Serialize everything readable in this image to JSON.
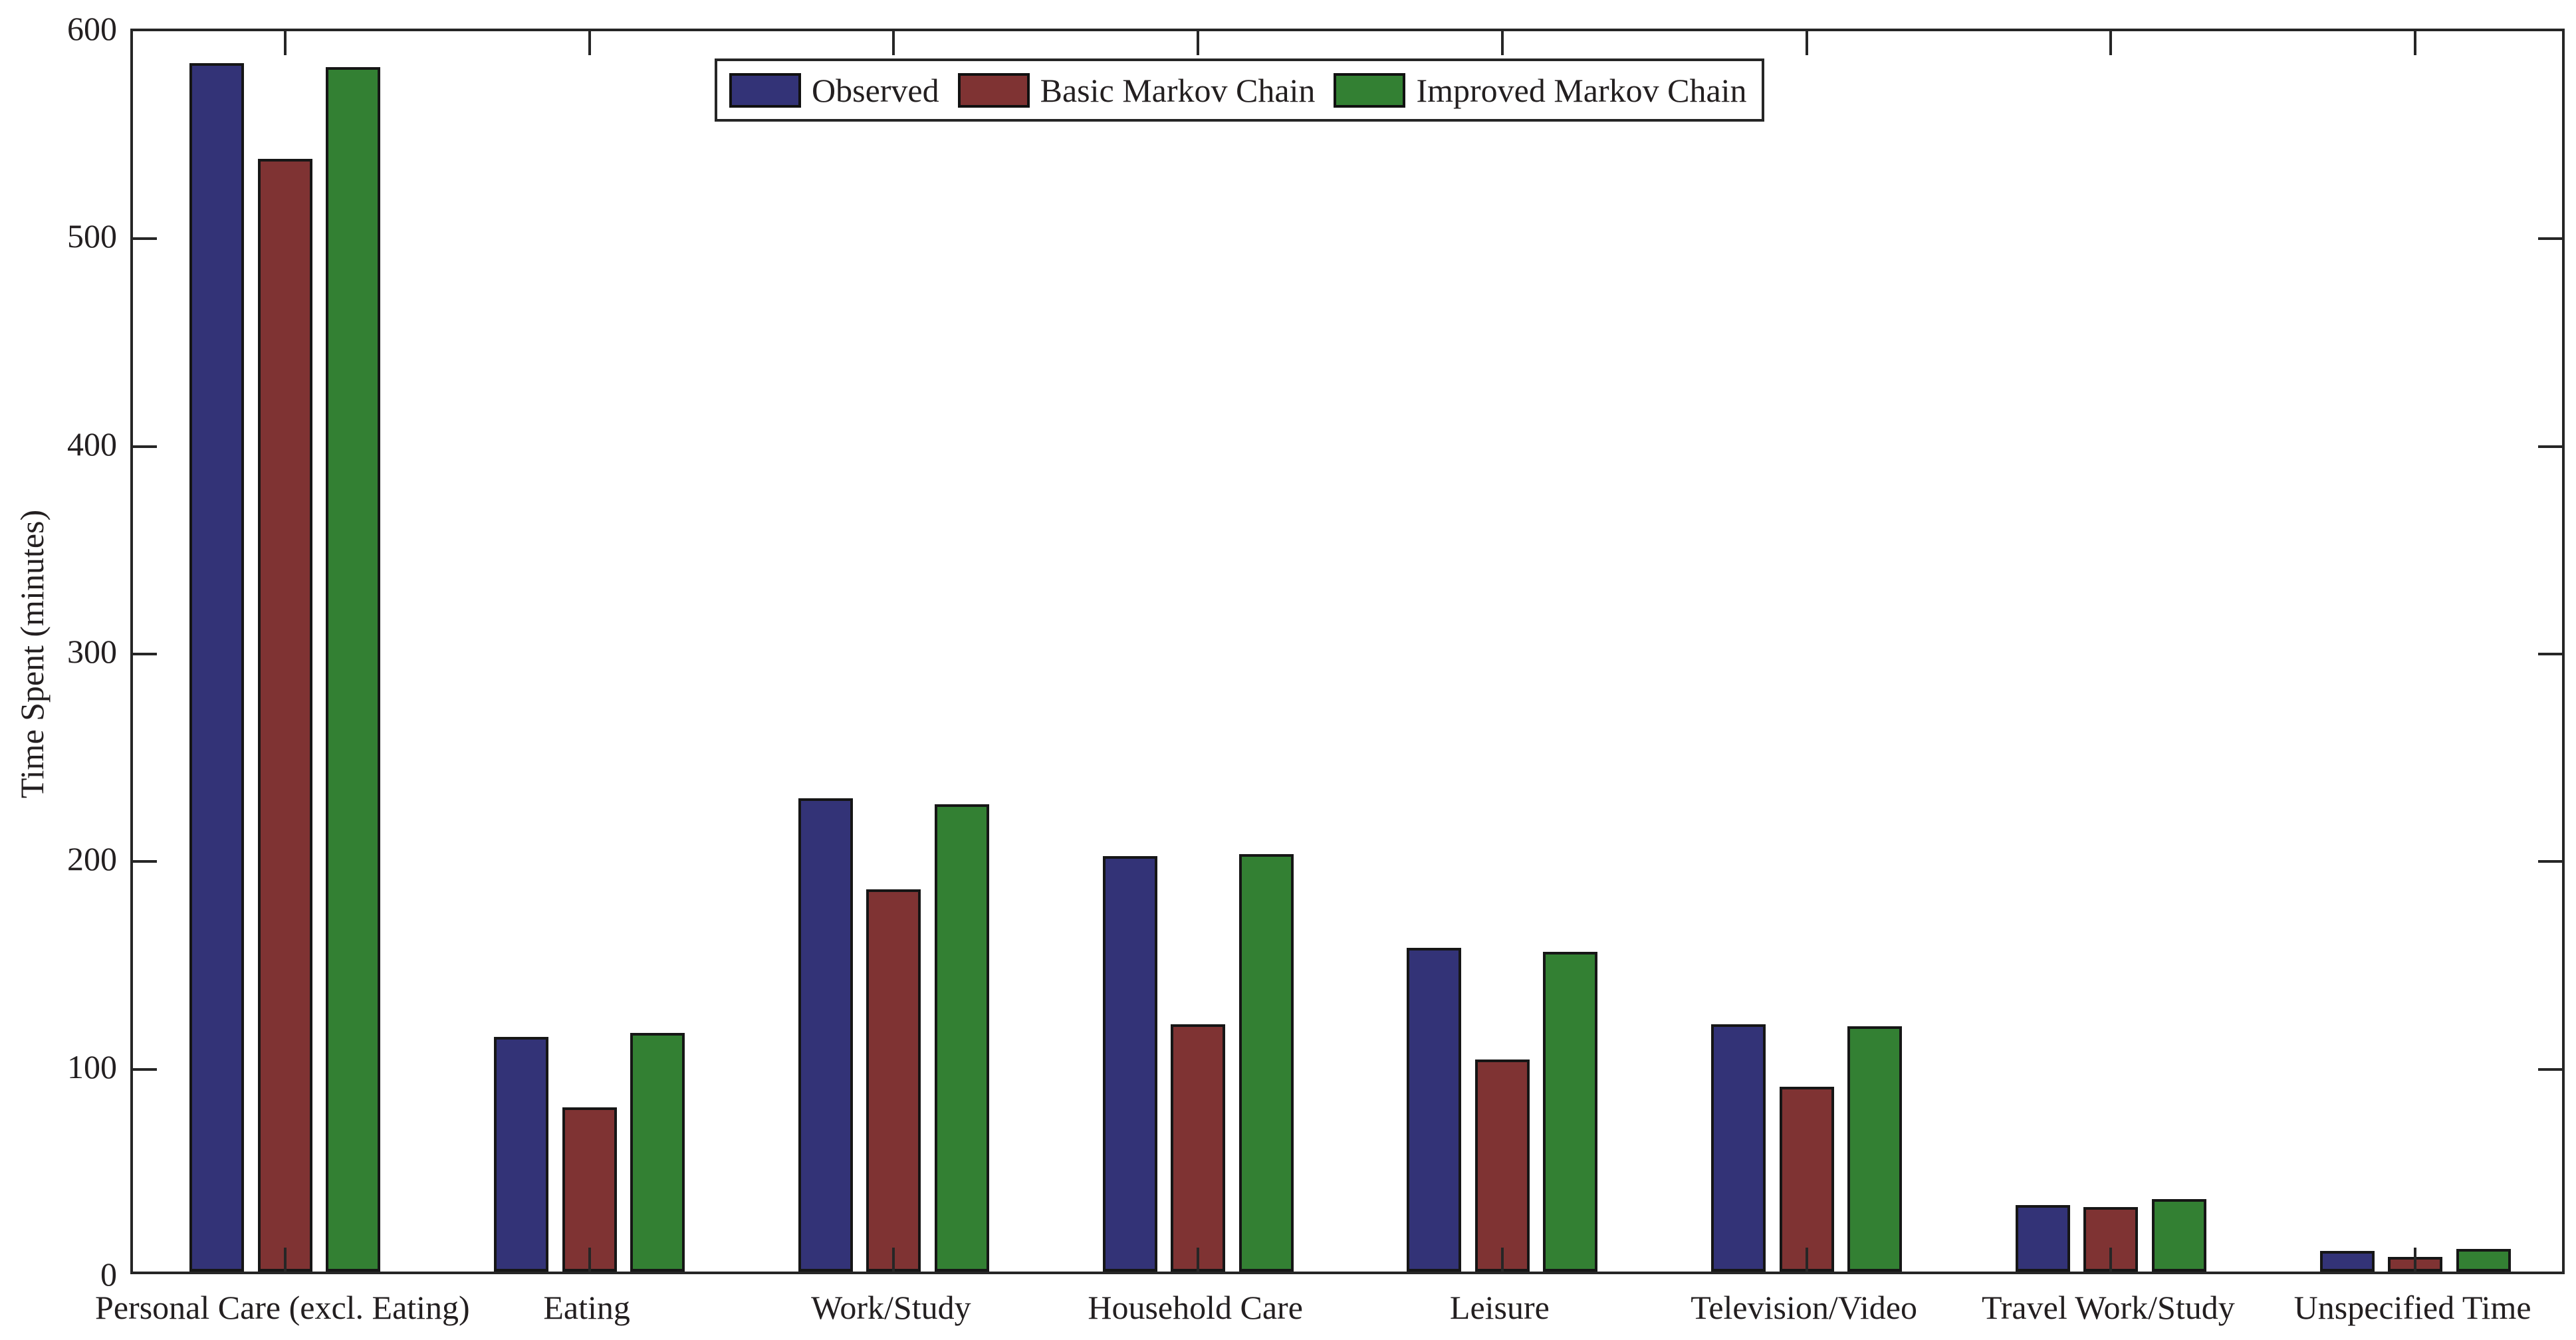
{
  "chart_data": {
    "type": "bar",
    "title": "",
    "xlabel": "",
    "ylabel": "Time Spent (minutes)",
    "ylim": [
      0,
      600
    ],
    "yticks": [
      0,
      100,
      200,
      300,
      400,
      500,
      600
    ],
    "grid": false,
    "legend_position": "top-center-inside",
    "axis_color": "#262626",
    "bar_edge_color": "#161616",
    "categories": [
      "Personal Care (excl. Eating)",
      "Eating",
      "Work/Study",
      "Household Care",
      "Leisure",
      "Television/Video",
      "Travel Work/Study",
      "Unspecified Time"
    ],
    "series": [
      {
        "name": "Observed",
        "color": "#333377",
        "values": [
          582,
          113,
          228,
          200,
          156,
          119,
          32,
          10
        ]
      },
      {
        "name": "Basic Markov Chain",
        "color": "#7F3333",
        "values": [
          536,
          79,
          184,
          119,
          102,
          89,
          31,
          7
        ]
      },
      {
        "name": "Improved Markov Chain",
        "color": "#338033",
        "values": [
          580,
          115,
          225,
          201,
          154,
          118,
          35,
          11
        ]
      }
    ]
  }
}
